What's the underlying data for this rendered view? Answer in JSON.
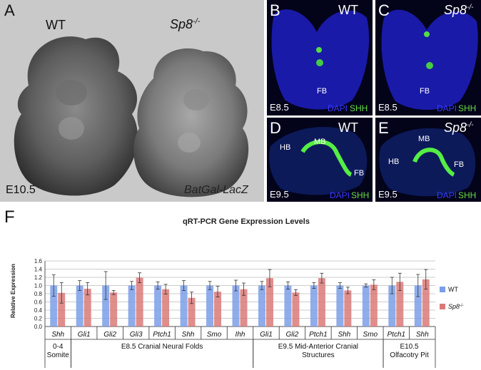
{
  "panelA": {
    "label": "A",
    "wt": "WT",
    "mutant": "Sp8",
    "mutant_sup": "-/-",
    "stage": "E10.5",
    "reporter": "BatGal-LacZ"
  },
  "panelB": {
    "label": "B",
    "geno": "WT",
    "stage": "E8.5",
    "dapi": "DAPI",
    "shh": "SHH",
    "fb": "FB"
  },
  "panelC": {
    "label": "C",
    "geno": "Sp8",
    "geno_sup": "-/-",
    "stage": "E8.5",
    "dapi": "DAPI",
    "shh": "SHH",
    "fb": "FB"
  },
  "panelD": {
    "label": "D",
    "geno": "WT",
    "stage": "E9.5",
    "dapi": "DAPI",
    "shh": "SHH",
    "hb": "HB",
    "mb": "MB",
    "fb": "FB"
  },
  "panelE": {
    "label": "E",
    "geno": "Sp8",
    "geno_sup": "-/-",
    "stage": "E9.5",
    "dapi": "DAPI",
    "shh": "SHH",
    "hb": "HB",
    "mb": "MB",
    "fb": "FB"
  },
  "panelF": {
    "label": "F"
  },
  "colors": {
    "wt": "#7b9fe8",
    "mutant": "#d97a78",
    "background_A": "#c9c9c9",
    "fluor_bg": "#03031a"
  },
  "chart_data": {
    "type": "bar",
    "title": "qRT-PCR Gene Expression Levels",
    "ylabel": "Relative Expression",
    "ylim": [
      0,
      1.6
    ],
    "yticks": [
      "0.0",
      "0.2",
      "0.4",
      "0.6",
      "0.8",
      "1.0",
      "1.2",
      "1.4",
      "1.6"
    ],
    "categories": [
      "Shh",
      "Gli1",
      "Gli2",
      "Gli3",
      "Ptch1",
      "Shh",
      "Smo",
      "Ihh",
      "Gli1",
      "Gli2",
      "Ptch1",
      "Shh",
      "Smo",
      "Ptch1",
      "Shh"
    ],
    "series": [
      {
        "name": "WT",
        "values": [
          1.0,
          1.0,
          1.0,
          1.0,
          1.0,
          1.0,
          1.0,
          1.0,
          1.0,
          1.0,
          1.0,
          1.0,
          1.0,
          1.0,
          1.0
        ],
        "errors": [
          0.26,
          0.12,
          0.34,
          0.1,
          0.09,
          0.12,
          0.1,
          0.13,
          0.1,
          0.09,
          0.07,
          0.07,
          0.04,
          0.2,
          0.27
        ]
      },
      {
        "name": "Sp8",
        "name_sup": "-/-",
        "values": [
          0.82,
          0.92,
          0.83,
          1.19,
          0.91,
          0.7,
          0.85,
          0.91,
          1.18,
          0.83,
          1.18,
          0.88,
          1.02,
          1.09,
          1.15
        ],
        "errors": [
          0.25,
          0.15,
          0.05,
          0.12,
          0.12,
          0.14,
          0.13,
          0.15,
          0.21,
          0.07,
          0.12,
          0.08,
          0.12,
          0.21,
          0.24
        ]
      }
    ],
    "groups": [
      {
        "lines": [
          "0-4",
          "Somite"
        ],
        "start": 0,
        "end": 0
      },
      {
        "lines": [
          "E8.5 Cranial Neural Folds"
        ],
        "start": 1,
        "end": 7
      },
      {
        "lines": [
          "E9.5 Mid-Anterior Cranial",
          "Structures"
        ],
        "start": 8,
        "end": 12
      },
      {
        "lines": [
          "E10.5",
          "Olfacotry Pit"
        ],
        "start": 13,
        "end": 14
      }
    ],
    "legend_position": "right",
    "grid": true
  }
}
